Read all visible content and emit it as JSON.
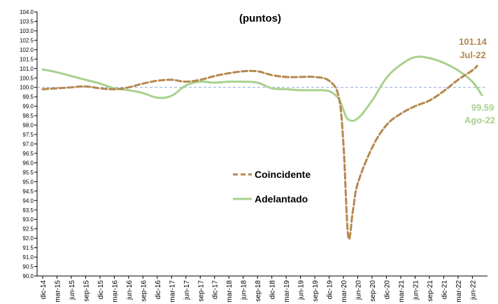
{
  "chart_data": {
    "type": "line",
    "title": "(puntos)",
    "ylim": [
      90.0,
      104.0
    ],
    "y_ticks": [
      "90.0",
      "90.5",
      "91.0",
      "91.5",
      "92.0",
      "92.5",
      "93.0",
      "93.5",
      "94.0",
      "94.5",
      "95.0",
      "95.5",
      "96.0",
      "96.5",
      "97.0",
      "97.5",
      "98.0",
      "98.5",
      "99.0",
      "99.5",
      "100.0",
      "100.5",
      "101.0",
      "101.5",
      "102.0",
      "102.5",
      "103.0",
      "103.5",
      "104.0"
    ],
    "x_tick_labels": [
      "dic-14",
      "mar-15",
      "jun-15",
      "sep-15",
      "dic-15",
      "mar-16",
      "jun-16",
      "sep-16",
      "dic-16",
      "mar-17",
      "jun-17",
      "sep-17",
      "dic-17",
      "mar-18",
      "jun-18",
      "sep-18",
      "dic-18",
      "mar-19",
      "jun-19",
      "sep-19",
      "dic-19",
      "mar-20",
      "jun-20",
      "sep-20",
      "dic-20",
      "mar-21",
      "jun-21",
      "sep-21",
      "dic-21",
      "mar-22",
      "jun-22"
    ],
    "reference_line": 100.0,
    "grid": false,
    "legend_position": "center",
    "series": [
      {
        "name": "Coincidente",
        "color": "#b5884f",
        "style": "dashed",
        "x": [
          "dic-14",
          "mar-15",
          "jun-15",
          "sep-15",
          "dic-15",
          "mar-16",
          "jun-16",
          "sep-16",
          "dic-16",
          "mar-17",
          "jun-17",
          "sep-17",
          "dic-17",
          "mar-18",
          "jun-18",
          "sep-18",
          "dic-18",
          "mar-19",
          "jun-19",
          "sep-19",
          "dic-19",
          "feb-20",
          "mar-20",
          "abr-20",
          "may-20",
          "jun-20",
          "sep-20",
          "dic-20",
          "mar-21",
          "jun-21",
          "sep-21",
          "dic-21",
          "mar-22",
          "jun-22",
          "jul-22"
        ],
        "values": [
          99.9,
          99.95,
          100.0,
          100.05,
          99.95,
          99.9,
          100.0,
          100.2,
          100.35,
          100.4,
          100.3,
          100.4,
          100.6,
          100.75,
          100.85,
          100.85,
          100.65,
          100.55,
          100.55,
          100.55,
          100.35,
          99.5,
          97.0,
          92.1,
          93.5,
          94.9,
          96.8,
          98.0,
          98.6,
          99.0,
          99.3,
          99.8,
          100.4,
          100.9,
          101.14
        ]
      },
      {
        "name": "Adelantado",
        "color": "#a9d18e",
        "style": "solid",
        "x": [
          "dic-14",
          "mar-15",
          "jun-15",
          "sep-15",
          "dic-15",
          "mar-16",
          "jun-16",
          "sep-16",
          "dic-16",
          "mar-17",
          "jun-17",
          "sep-17",
          "dic-17",
          "mar-18",
          "jun-18",
          "sep-18",
          "dic-18",
          "mar-19",
          "jun-19",
          "sep-19",
          "dic-19",
          "feb-20",
          "mar-20",
          "abr-20",
          "jun-20",
          "sep-20",
          "dic-20",
          "mar-21",
          "jun-21",
          "sep-21",
          "dic-21",
          "mar-22",
          "jun-22",
          "ago-22"
        ],
        "values": [
          100.95,
          100.8,
          100.6,
          100.4,
          100.2,
          99.95,
          99.85,
          99.7,
          99.45,
          99.55,
          100.1,
          100.3,
          100.25,
          100.3,
          100.3,
          100.25,
          99.95,
          99.9,
          99.85,
          99.85,
          99.8,
          99.4,
          98.8,
          98.3,
          98.35,
          99.3,
          100.5,
          101.2,
          101.6,
          101.55,
          101.3,
          100.9,
          100.3,
          99.59
        ]
      }
    ],
    "annotations": [
      {
        "series": "Coincidente",
        "value": "101.14",
        "date": "Jul-22"
      },
      {
        "series": "Adelantado",
        "value": "99.59",
        "date": "Ago-22"
      }
    ]
  }
}
